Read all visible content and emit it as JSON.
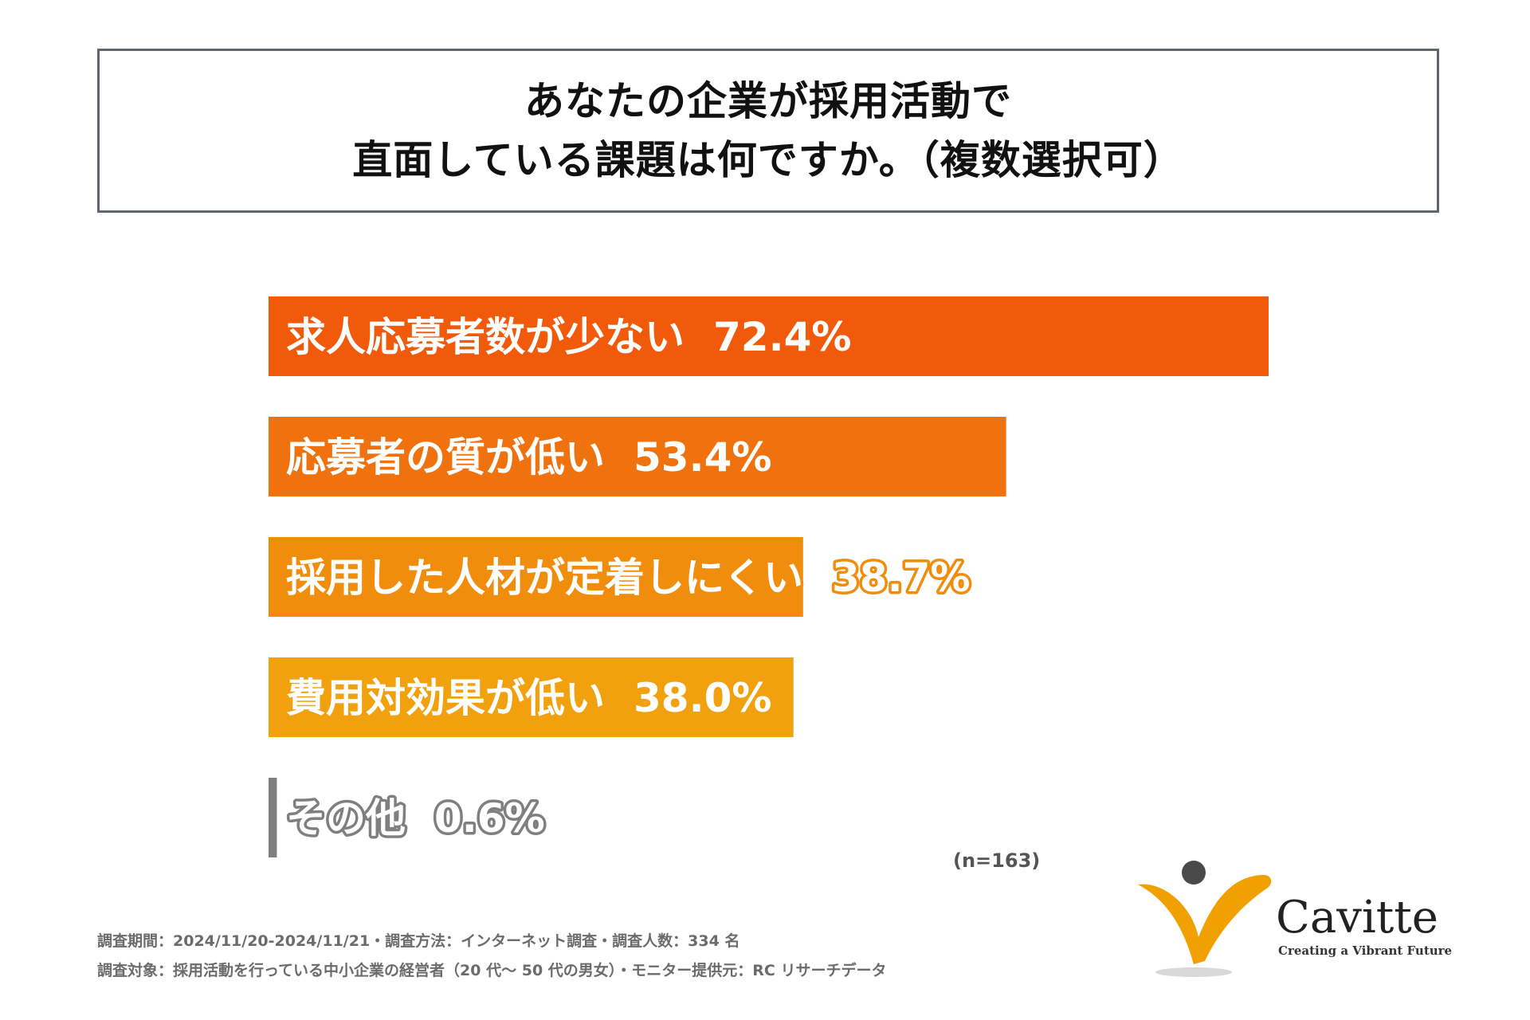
{
  "title": {
    "line1": "あなたの企業が採用活動で",
    "line2": "直面している課題は何ですか。（複数選択可）"
  },
  "chart_data": {
    "type": "bar",
    "orientation": "horizontal",
    "title": "あなたの企業が採用活動で直面している課題は何ですか。（複数選択可）",
    "categories": [
      "求人応募者数が少ない",
      "応募者の質が低い",
      "採用した人材が定着しにくい",
      "費用対効果が低い",
      "その他"
    ],
    "values": [
      72.4,
      53.4,
      38.7,
      38.0,
      0.6
    ],
    "value_labels": [
      "72.4%",
      "53.4%",
      "38.7%",
      "38.0%",
      "0.6%"
    ],
    "colors": [
      "#f05a0a",
      "#f0720e",
      "#f08d0c",
      "#f0a10d",
      "#7f7f7f"
    ],
    "unit": "%",
    "xlim": [
      0,
      100
    ]
  },
  "sample": "(n=163)",
  "footnotes": {
    "line1": "調査期間：2024/11/20-2024/11/21・調査方法：インターネット調査・調査人数：334 名",
    "line2": "調査対象：採用活動を行っている中小企業の経営者（20 代～ 50 代の男女）・モニター提供元：RC リサーチデータ"
  },
  "logo": {
    "name": "Cavitte",
    "tagline": "Creating a Vibrant Future"
  }
}
